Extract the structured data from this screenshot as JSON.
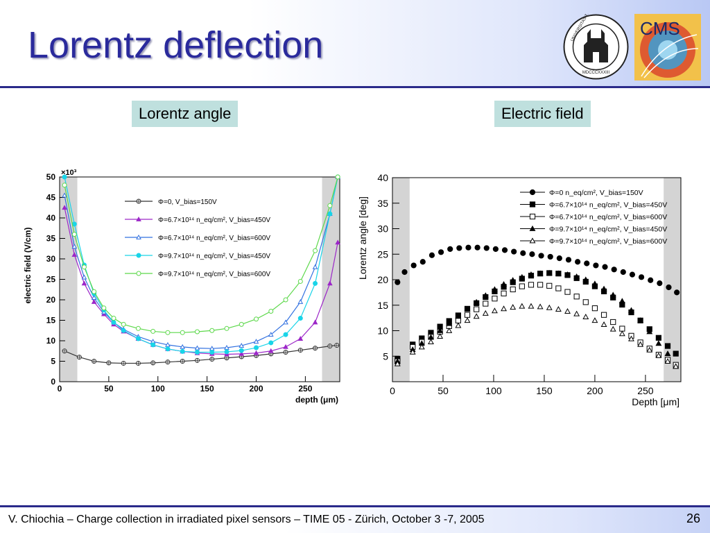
{
  "slide": {
    "title": "Lorentz deflection",
    "label_left": "Lorentz angle",
    "label_right": "Electric field",
    "footer": "V. Chiochia – Charge collection in irradiated pixel sensors – TIME 05 - Zürich, October 3 -7, 2005",
    "page_number": "26"
  },
  "logos": {
    "university": {
      "name": "university-seal",
      "ring_text": "UNIVERSITAS TURICENSIS",
      "year": "MDCCCXXXIII"
    },
    "cms": {
      "name": "cms-logo",
      "text": "CMS"
    }
  },
  "colors": {
    "title": "#2a2a9c",
    "label_bg": "#bfe0de",
    "rule": "#2a2a8a"
  },
  "chart_data": [
    {
      "id": "efield",
      "type": "line",
      "xlabel": "depth (μm)",
      "ylabel": "electric field (V/cm)",
      "ymultiplier": "×10³",
      "xlim": [
        0,
        285
      ],
      "ylim": [
        0,
        50
      ],
      "xticks": [
        0,
        50,
        100,
        150,
        200,
        250
      ],
      "yticks": [
        0,
        5,
        10,
        15,
        20,
        25,
        30,
        35,
        40,
        45,
        50
      ],
      "shaded_regions": [
        [
          0,
          18
        ],
        [
          267,
          285
        ]
      ],
      "legend_position": "top-center",
      "series": [
        {
          "name": "Φ=0, V_bias=150V",
          "color": "#333333",
          "marker": "circle-cross",
          "x": [
            5,
            20,
            35,
            50,
            65,
            80,
            95,
            110,
            125,
            140,
            155,
            170,
            185,
            200,
            215,
            230,
            245,
            260,
            275,
            282
          ],
          "y": [
            7.5,
            6.0,
            5.0,
            4.6,
            4.5,
            4.5,
            4.6,
            4.8,
            5.0,
            5.2,
            5.5,
            5.8,
            6.1,
            6.4,
            6.8,
            7.2,
            7.7,
            8.2,
            8.7,
            8.9
          ]
        },
        {
          "name": "Φ=6.7×10¹⁴ n_eq/cm², V_bias=450V",
          "color": "#9c27c8",
          "marker": "triangle-filled",
          "x": [
            5,
            15,
            25,
            35,
            45,
            55,
            65,
            80,
            95,
            110,
            125,
            140,
            155,
            170,
            185,
            200,
            215,
            230,
            245,
            260,
            275,
            283
          ],
          "y": [
            42.5,
            31,
            24,
            19.5,
            16.5,
            14,
            12.3,
            10.5,
            9.0,
            8.0,
            7.4,
            7.0,
            6.8,
            6.7,
            6.8,
            7.0,
            7.5,
            8.5,
            10.5,
            14.5,
            24,
            34
          ]
        },
        {
          "name": "Φ=6.7×10¹⁴ n_eq/cm², V_bias=600V",
          "color": "#3070e0",
          "marker": "triangle-open",
          "x": [
            5,
            15,
            25,
            35,
            45,
            55,
            65,
            80,
            95,
            110,
            125,
            140,
            155,
            170,
            185,
            200,
            215,
            230,
            245,
            260,
            275,
            283
          ],
          "y": [
            45.5,
            33,
            25.5,
            20.5,
            17,
            14.5,
            12.8,
            11.0,
            9.8,
            9.0,
            8.5,
            8.2,
            8.1,
            8.3,
            8.8,
            9.8,
            11.5,
            14.5,
            19.5,
            28,
            41,
            50
          ]
        },
        {
          "name": "Φ=9.7×10¹⁴ n_eq/cm², V_bias=450V",
          "color": "#19d4e8",
          "marker": "circle-filled",
          "x": [
            5,
            15,
            25,
            35,
            45,
            55,
            65,
            80,
            95,
            110,
            125,
            140,
            155,
            170,
            185,
            200,
            215,
            230,
            245,
            260,
            275,
            283
          ],
          "y": [
            50,
            38.5,
            28.5,
            21.5,
            17.5,
            14.5,
            12.5,
            10.5,
            9.0,
            8.0,
            7.4,
            7.2,
            7.2,
            7.3,
            7.6,
            8.3,
            9.5,
            11.5,
            15.5,
            24,
            41,
            50
          ]
        },
        {
          "name": "Φ=9.7×10¹⁴ n_eq/cm², V_bias=600V",
          "color": "#5cd84a",
          "marker": "circle-open",
          "x": [
            5,
            15,
            25,
            35,
            45,
            55,
            65,
            80,
            95,
            110,
            125,
            140,
            155,
            170,
            185,
            200,
            215,
            230,
            245,
            260,
            275,
            283
          ],
          "y": [
            48,
            36,
            28,
            22,
            18,
            15.5,
            14,
            13,
            12.3,
            12.0,
            12.0,
            12.2,
            12.5,
            13,
            14,
            15.3,
            17.2,
            20,
            24.5,
            32,
            43,
            50
          ]
        }
      ]
    },
    {
      "id": "lorentz",
      "type": "scatter",
      "xlabel": "Depth [μm]",
      "ylabel": "Lorentz angle [deg]",
      "xlim": [
        0,
        285
      ],
      "ylim": [
        0,
        40
      ],
      "xticks": [
        0,
        50,
        100,
        150,
        200,
        250
      ],
      "yticks": [
        5,
        10,
        15,
        20,
        25,
        30,
        35,
        40
      ],
      "shaded_regions": [
        [
          0,
          17
        ],
        [
          268,
          285
        ]
      ],
      "legend_position": "top-right",
      "series": [
        {
          "name": "Φ=0 n_eq/cm², V_bias=150V",
          "color": "#000000",
          "marker": "circle-filled",
          "x": [
            5,
            12,
            21,
            30,
            39,
            48,
            57,
            66,
            75,
            84,
            93,
            102,
            111,
            120,
            129,
            138,
            147,
            156,
            165,
            174,
            183,
            192,
            201,
            210,
            219,
            228,
            237,
            246,
            255,
            264,
            273,
            281
          ],
          "y": [
            19.5,
            21.5,
            22.8,
            23.5,
            24.8,
            25.4,
            26.0,
            26.2,
            26.3,
            26.3,
            26.2,
            26.0,
            25.8,
            25.5,
            25.2,
            25.0,
            24.7,
            24.5,
            24.2,
            23.9,
            23.5,
            23.2,
            22.8,
            22.5,
            22.0,
            21.5,
            21.0,
            20.5,
            19.9,
            19.3,
            18.5,
            17.5
          ]
        },
        {
          "name": "Φ=6.7×10¹⁴ n_eq/cm², V_bias=450V",
          "color": "#000000",
          "marker": "square-filled",
          "x": [
            5,
            20,
            29,
            38,
            47,
            56,
            65,
            74,
            83,
            92,
            101,
            110,
            119,
            128,
            137,
            146,
            155,
            164,
            173,
            182,
            191,
            200,
            209,
            218,
            227,
            236,
            245,
            254,
            263,
            272,
            280
          ],
          "y": [
            4.5,
            7.3,
            8.5,
            9.6,
            10.8,
            11.9,
            13.0,
            14.3,
            15.4,
            16.6,
            17.7,
            18.6,
            19.5,
            20.2,
            20.8,
            21.2,
            21.3,
            21.2,
            20.9,
            20.3,
            19.6,
            18.7,
            17.7,
            16.5,
            15.1,
            13.6,
            12.0,
            10.3,
            8.6,
            7.0,
            5.5
          ]
        },
        {
          "name": "Φ=6.7×10¹⁴ n_eq/cm², V_bias=600V",
          "color": "#000000",
          "marker": "square-open",
          "x": [
            5,
            20,
            29,
            38,
            47,
            56,
            65,
            74,
            83,
            92,
            101,
            110,
            119,
            128,
            137,
            146,
            155,
            164,
            173,
            182,
            191,
            200,
            209,
            218,
            227,
            236,
            245,
            254,
            263,
            272,
            280
          ],
          "y": [
            4.0,
            6.8,
            7.8,
            8.8,
            9.8,
            10.9,
            12.0,
            13.1,
            14.2,
            15.3,
            16.3,
            17.3,
            18.1,
            18.7,
            19.0,
            19.0,
            18.8,
            18.3,
            17.6,
            16.7,
            15.6,
            14.4,
            13.1,
            11.7,
            10.4,
            9.0,
            7.7,
            6.5,
            5.3,
            4.3,
            3.3
          ]
        },
        {
          "name": "Φ=9.7×10¹⁴ n_eq/cm², V_bias=450V",
          "color": "#000000",
          "marker": "triangle-filled",
          "x": [
            5,
            20,
            29,
            38,
            47,
            56,
            65,
            74,
            83,
            92,
            101,
            110,
            119,
            128,
            137,
            146,
            155,
            164,
            173,
            182,
            191,
            200,
            209,
            218,
            227,
            236,
            245,
            254,
            263,
            272,
            280
          ],
          "y": [
            4.0,
            6.3,
            7.5,
            8.7,
            10.0,
            11.4,
            12.8,
            14.2,
            15.6,
            16.9,
            18.1,
            19.1,
            19.9,
            20.5,
            21.0,
            21.2,
            21.3,
            21.2,
            21.0,
            20.6,
            20.0,
            19.2,
            18.2,
            17.0,
            15.8,
            14.0,
            12.0,
            9.8,
            7.5,
            5.5,
            3.0
          ]
        },
        {
          "name": "Φ=9.7×10¹⁴ n_eq/cm², V_bias=600V",
          "color": "#000000",
          "marker": "triangle-open",
          "x": [
            5,
            20,
            29,
            38,
            47,
            56,
            65,
            74,
            83,
            92,
            101,
            110,
            119,
            128,
            137,
            146,
            155,
            164,
            173,
            182,
            191,
            200,
            209,
            218,
            227,
            236,
            245,
            254,
            263,
            272,
            280
          ],
          "y": [
            3.5,
            5.8,
            6.8,
            7.8,
            8.9,
            10.0,
            11.0,
            12.0,
            12.8,
            13.4,
            13.9,
            14.3,
            14.6,
            14.8,
            14.8,
            14.7,
            14.5,
            14.2,
            13.8,
            13.3,
            12.7,
            12.0,
            11.2,
            10.3,
            9.4,
            8.4,
            7.3,
            6.2,
            5.1,
            4.0,
            3.0
          ]
        }
      ]
    }
  ]
}
